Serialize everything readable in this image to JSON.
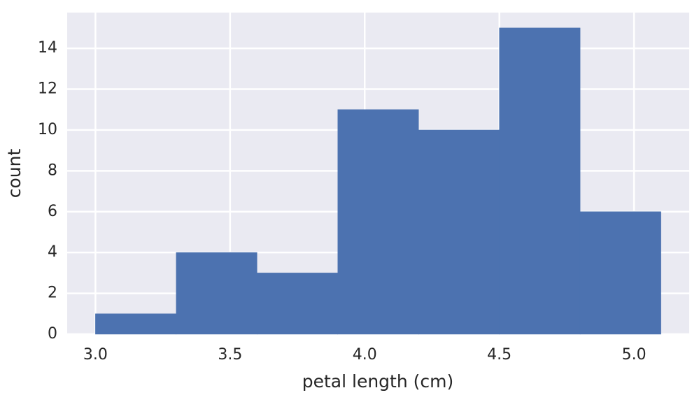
{
  "chart_data": {
    "type": "histogram",
    "xlabel": "petal length (cm)",
    "ylabel": "count",
    "bins": [
      3.0,
      3.3,
      3.6,
      3.9,
      4.2,
      4.5,
      4.8,
      5.1
    ],
    "values": [
      1,
      4,
      3,
      11,
      10,
      15,
      6
    ],
    "color": "#4c72b0",
    "xlim": [
      2.895,
      5.205
    ],
    "ylim": [
      0,
      15.75
    ],
    "xticks": [
      {
        "value": 3.0,
        "label": "3.0"
      },
      {
        "value": 3.5,
        "label": "3.5"
      },
      {
        "value": 4.0,
        "label": "4.0"
      },
      {
        "value": 4.5,
        "label": "4.5"
      },
      {
        "value": 5.0,
        "label": "5.0"
      }
    ],
    "yticks": [
      0,
      2,
      4,
      6,
      8,
      10,
      12,
      14
    ],
    "grid": true
  }
}
